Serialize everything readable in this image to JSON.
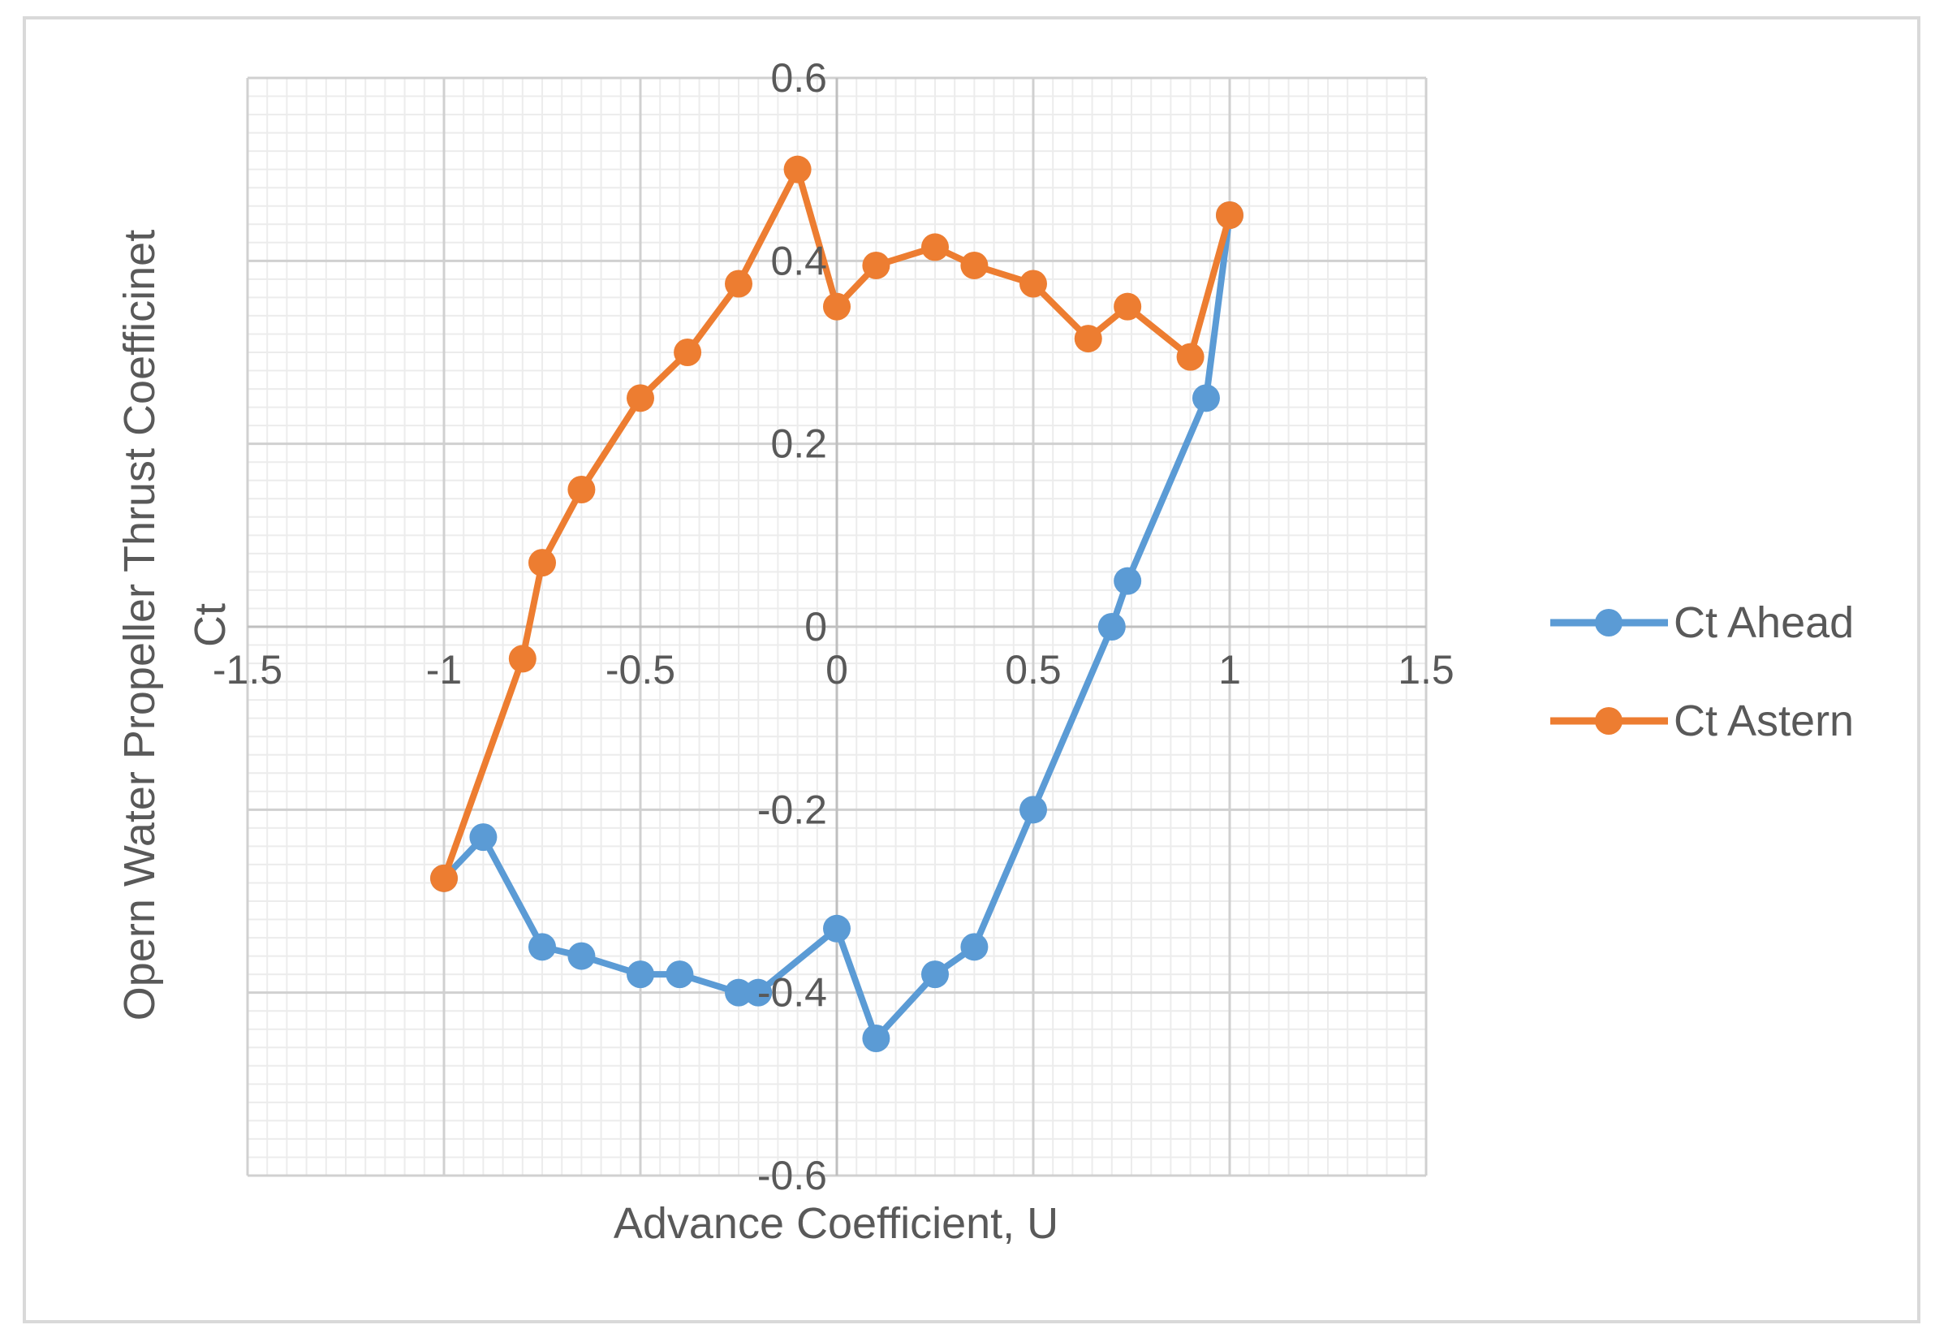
{
  "chart_data": {
    "type": "scatter",
    "title": "",
    "xlabel": "Advance Coefficient, U",
    "ylabel_outer": "Opern Water Propeller Thrust Coefficinet",
    "ylabel_inner": "Ct",
    "xlim": [
      -1.5,
      1.5
    ],
    "ylim": [
      -0.6,
      0.6
    ],
    "x_ticks": [
      -1.5,
      -1,
      -0.5,
      0,
      0.5,
      1,
      1.5
    ],
    "x_tick_labels": [
      "-1.5",
      "-1",
      "-0.5",
      "0",
      "0.5",
      "1",
      "1.5"
    ],
    "y_ticks": [
      -0.6,
      -0.4,
      -0.2,
      0,
      0.2,
      0.4,
      0.6
    ],
    "y_tick_labels": [
      "-0.6",
      "-0.4",
      "-0.2",
      "0",
      "0.2",
      "0.4",
      "0.6"
    ],
    "major_grid": true,
    "minor_grid": true,
    "legend_position": "right",
    "series": [
      {
        "name": "Ct Ahead",
        "color": "#5b9bd5",
        "x": [
          -1.0,
          -0.9,
          -0.75,
          -0.65,
          -0.5,
          -0.4,
          -0.25,
          -0.2,
          0.0,
          0.1,
          0.25,
          0.35,
          0.5,
          0.7,
          0.74,
          0.94,
          1.0
        ],
        "y": [
          -0.275,
          -0.23,
          -0.35,
          -0.36,
          -0.38,
          -0.38,
          -0.4,
          -0.4,
          -0.33,
          -0.45,
          -0.38,
          -0.35,
          -0.2,
          0.0,
          0.05,
          0.25,
          0.45
        ]
      },
      {
        "name": "Ct Astern",
        "color": "#ed7d31",
        "x": [
          -1.0,
          -0.8,
          -0.75,
          -0.65,
          -0.5,
          -0.38,
          -0.25,
          -0.1,
          0.0,
          0.1,
          0.25,
          0.35,
          0.5,
          0.64,
          0.74,
          0.9,
          1.0
        ],
        "y": [
          -0.275,
          -0.035,
          0.07,
          0.15,
          0.25,
          0.3,
          0.375,
          0.5,
          0.35,
          0.395,
          0.415,
          0.395,
          0.375,
          0.315,
          0.35,
          0.295,
          0.45
        ]
      }
    ]
  }
}
